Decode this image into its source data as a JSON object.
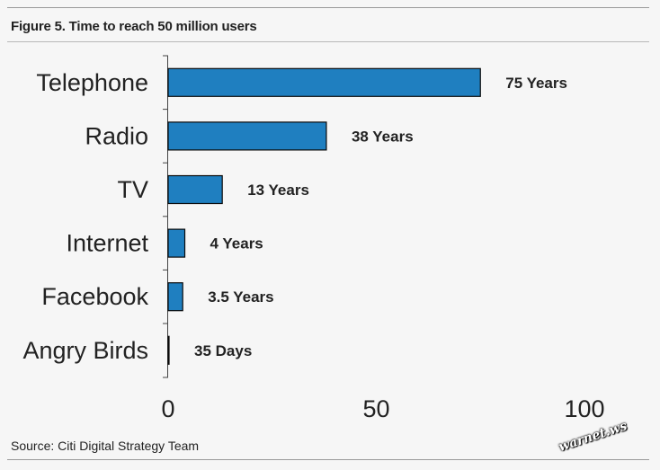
{
  "figure": {
    "title": "Figure 5. Time to reach 50 million users",
    "source": "Source: Citi Digital Strategy Team",
    "watermark": "warnet.ws"
  },
  "chart_data": {
    "type": "bar",
    "orientation": "horizontal",
    "title": "Figure 5. Time to reach 50 million users",
    "categories": [
      "Telephone",
      "Radio",
      "TV",
      "Internet",
      "Facebook",
      "Angry Birds"
    ],
    "values": [
      75,
      38,
      13,
      4,
      3.5,
      0.1
    ],
    "data_labels": [
      "75 Years",
      "38 Years",
      "13 Years",
      "4 Years",
      "3.5 Years",
      "35 Days"
    ],
    "xlim": [
      0,
      100
    ],
    "xticks": [
      0,
      50,
      100
    ],
    "xlabel": "",
    "ylabel": "",
    "grid": false,
    "legend": "none",
    "bar_color": "#1f7fc0",
    "bar_edge_color": "#0a0a0a"
  }
}
